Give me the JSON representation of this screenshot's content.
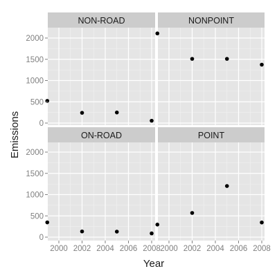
{
  "chart_data": {
    "type": "scatter",
    "xlabel": "Year",
    "ylabel": "Emissions",
    "xlim": [
      1999,
      2008
    ],
    "ylim": [
      0,
      2200
    ],
    "x_ticks": [
      2000,
      2002,
      2004,
      2006,
      2008
    ],
    "y_ticks": [
      0,
      500,
      1000,
      1500,
      2000
    ],
    "grid": true,
    "panels": [
      {
        "name": "NON-ROAD",
        "x": [
          1999,
          2002,
          2005,
          2008
        ],
        "values": [
          522,
          241,
          249,
          55
        ]
      },
      {
        "name": "NONPOINT",
        "x": [
          1999,
          2002,
          2005,
          2008
        ],
        "values": [
          2108,
          1510,
          1510,
          1373
        ]
      },
      {
        "name": "ON-ROAD",
        "x": [
          1999,
          2002,
          2005,
          2008
        ],
        "values": [
          347,
          134,
          130,
          88
        ]
      },
      {
        "name": "POINT",
        "x": [
          1999,
          2002,
          2005,
          2008
        ],
        "values": [
          296,
          569,
          1202,
          345
        ]
      }
    ]
  },
  "colors": {
    "panel_bg": "#e5e5e5",
    "strip_bg": "#cccccc",
    "grid_major": "#ffffff",
    "grid_minor": "#f2f2f2",
    "point": "#000000",
    "text": "#1a1a1a",
    "tick_text": "#7f7f7f"
  }
}
